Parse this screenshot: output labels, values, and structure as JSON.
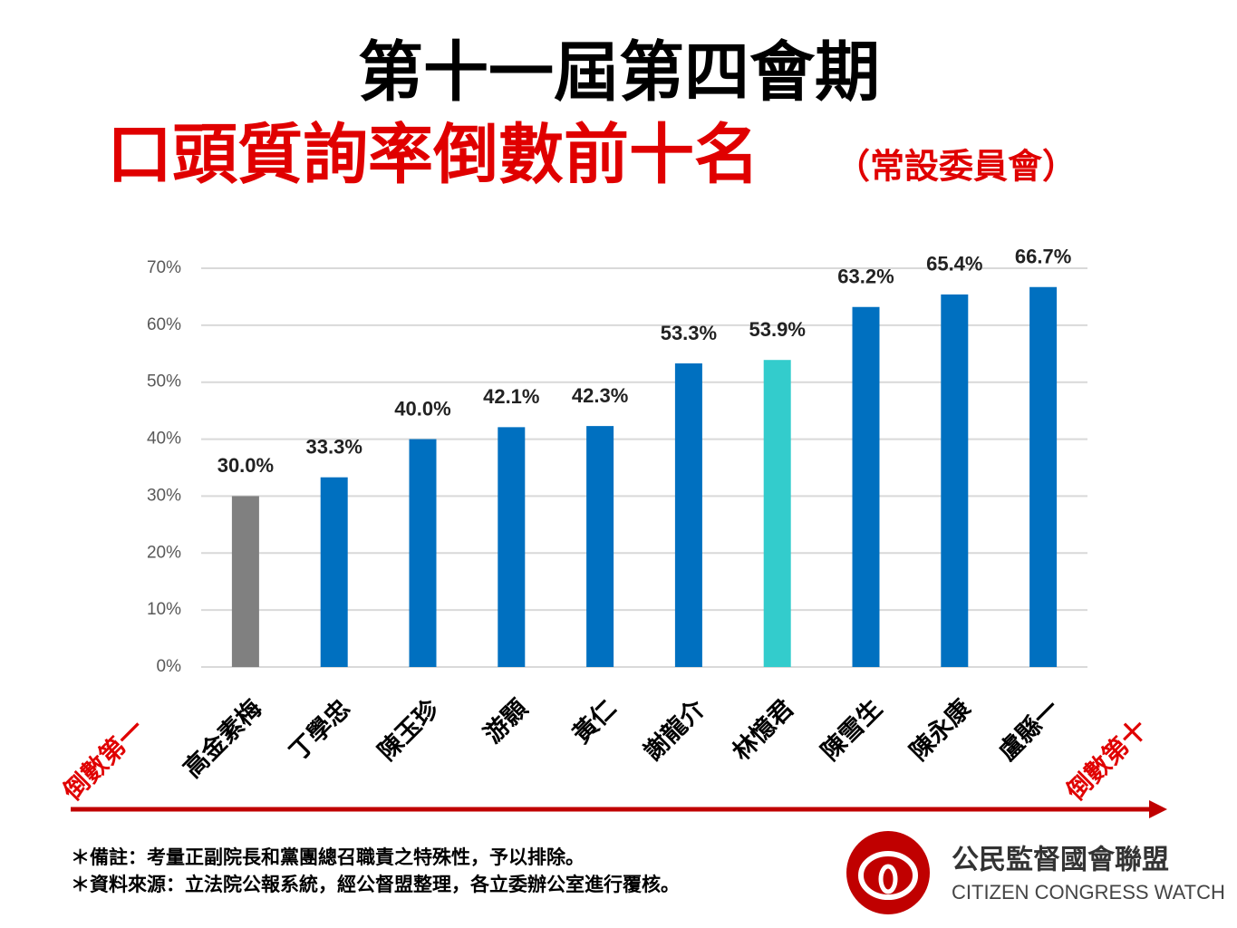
{
  "chart_data": {
    "type": "bar",
    "title": "第十一屆第四會期",
    "subtitle": "口頭質詢率倒數前十名",
    "subtitle_note": "（常設委員會）",
    "categories": [
      "高金素梅",
      "丁學忠",
      "陳玉珍",
      "游顥",
      "黃仁",
      "謝龍介",
      "林憶君",
      "陳雪生",
      "陳永康",
      "盧縣一"
    ],
    "values": [
      30.0,
      33.3,
      40.0,
      42.1,
      42.3,
      53.3,
      53.9,
      63.2,
      65.4,
      66.7
    ],
    "value_labels": [
      "30.0%",
      "33.3%",
      "40.0%",
      "42.1%",
      "42.3%",
      "53.3%",
      "53.9%",
      "63.2%",
      "65.4%",
      "66.7%"
    ],
    "colors": [
      "#808080",
      "#0070c0",
      "#0070c0",
      "#0070c0",
      "#0070c0",
      "#0070c0",
      "#33cccc",
      "#0070c0",
      "#0070c0",
      "#0070c0"
    ],
    "ylim": [
      0,
      70
    ],
    "yticks": [
      {
        "value": 0,
        "label": "0%"
      },
      {
        "value": 10,
        "label": "10%"
      },
      {
        "value": 20,
        "label": "20%"
      },
      {
        "value": 30,
        "label": "30%"
      },
      {
        "value": 40,
        "label": "40%"
      },
      {
        "value": 50,
        "label": "50%"
      },
      {
        "value": 60,
        "label": "60%"
      },
      {
        "value": 70,
        "label": "70%"
      }
    ],
    "grid": true,
    "start_label": "倒數第一",
    "end_label": "倒數第十"
  },
  "notes": [
    "＊備註：考量正副院長和黨團總召職責之特殊性，予以排除。",
    "＊資料來源：立法院公報系統，經公督盟整理，各立委辦公室進行覆核。"
  ],
  "logo": {
    "name": "公民監督國會聯盟",
    "english": "CITIZEN CONGRESS WATCH"
  }
}
